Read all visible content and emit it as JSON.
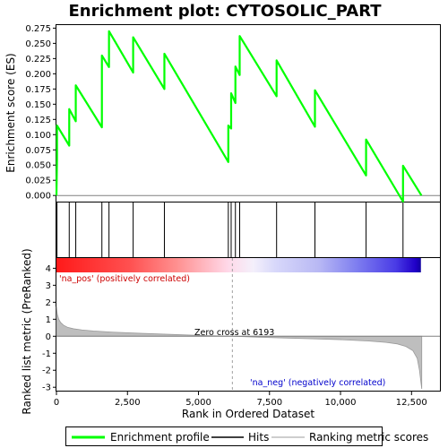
{
  "chart_data": {
    "type": "line",
    "title": "Enrichment plot: CYTOSOLIC_PART",
    "es_panel": {
      "ylabel": "Enrichment score (ES)",
      "ylim": [
        -0.01,
        0.28
      ],
      "yticks": [
        "0.275",
        "0.250",
        "0.225",
        "0.200",
        "0.175",
        "0.150",
        "0.125",
        "0.100",
        "0.075",
        "0.050",
        "0.025",
        "0.000"
      ],
      "series": [
        {
          "name": "Enrichment profile",
          "color": "#00ff00",
          "x": [
            0,
            20,
            20,
            450,
            450,
            680,
            680,
            1600,
            1600,
            1850,
            1850,
            2700,
            2700,
            3800,
            3800,
            6050,
            6050,
            6150,
            6150,
            6300,
            6300,
            6450,
            6450,
            7750,
            7750,
            9100,
            9100,
            10900,
            10900,
            12200,
            12200,
            12850
          ],
          "y": [
            0.0,
            0.06,
            0.115,
            0.082,
            0.142,
            0.122,
            0.181,
            0.112,
            0.23,
            0.211,
            0.27,
            0.202,
            0.26,
            0.175,
            0.233,
            0.055,
            0.115,
            0.11,
            0.168,
            0.152,
            0.212,
            0.198,
            0.262,
            0.163,
            0.222,
            0.113,
            0.173,
            0.033,
            0.092,
            -0.01,
            0.049,
            0.0
          ]
        }
      ]
    },
    "hits": {
      "name": "Hits",
      "positions": [
        20,
        450,
        680,
        1600,
        1850,
        2700,
        3800,
        6050,
        6150,
        6300,
        6450,
        7750,
        9100,
        10900,
        12200
      ]
    },
    "metric_panel": {
      "ylabel": "Ranked list metric (PreRanked)",
      "ylim": [
        -3.2,
        4.6
      ],
      "yticks": [
        "4",
        "3",
        "2",
        "1",
        "0",
        "-1",
        "-2",
        "-3"
      ],
      "series_name": "Ranking metric scores",
      "zero_cross_label": "Zero cross at 6193",
      "zero_cross": 6193,
      "pos_label": "'na_pos' (positively correlated)",
      "neg_label": "'na_neg' (negatively correlated)",
      "x": [
        0,
        30,
        80,
        150,
        250,
        400,
        600,
        900,
        1300,
        2000,
        3000,
        4000,
        5000,
        6193,
        7000,
        8000,
        9000,
        10000,
        11000,
        11600,
        12000,
        12300,
        12550,
        12700,
        12780,
        12830,
        12860
      ],
      "y": [
        1.75,
        1.3,
        1.0,
        0.8,
        0.65,
        0.52,
        0.44,
        0.37,
        0.31,
        0.24,
        0.17,
        0.11,
        0.05,
        0.0,
        -0.05,
        -0.1,
        -0.15,
        -0.2,
        -0.28,
        -0.36,
        -0.45,
        -0.6,
        -0.85,
        -1.3,
        -2.0,
        -2.7,
        -3.1
      ]
    },
    "xaxis": {
      "label": "Rank in Ordered Dataset",
      "xlim": [
        0,
        13500
      ],
      "ticks": [
        "0",
        "2,500",
        "5,000",
        "7,500",
        "10,000",
        "12,500"
      ]
    },
    "colors": {
      "enrichment": "#00ff00",
      "hits": "#000000",
      "metric_fill": "#bebebe",
      "zero_line": "#a0a0a0",
      "pos_text": "#cc0000",
      "neg_text": "#0000cc"
    }
  },
  "legend": {
    "items": [
      {
        "label": "Enrichment profile"
      },
      {
        "label": "Hits"
      },
      {
        "label": "Ranking metric scores"
      }
    ]
  }
}
